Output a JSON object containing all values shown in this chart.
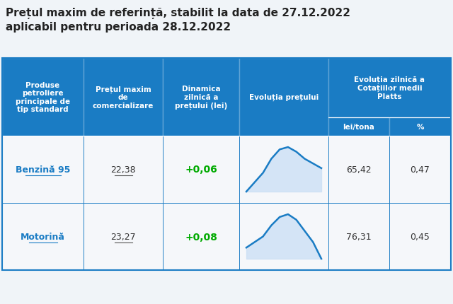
{
  "title_line1": "Prețul maxim de referință, stabilit la data de 27.12.2022",
  "title_line2": "aplicabil pentru perioada 28.12.2022",
  "header_bg": "#1a7cc4",
  "header_text_color": "#ffffff",
  "row_bg": "#f5f7fa",
  "border_color": "#1a7cc4",
  "rows": [
    {
      "name": "Benzină 95",
      "price": "22,38",
      "dynamic": "+0,06",
      "lei_tona": "65,42",
      "percent": "0,47",
      "chart_data": [
        10,
        8,
        6,
        3,
        1,
        0.5,
        1.5,
        3,
        4,
        5
      ]
    },
    {
      "name": "Motorină",
      "price": "23,27",
      "dynamic": "+0,08",
      "lei_tona": "76,31",
      "percent": "0,45",
      "chart_data": [
        6,
        5,
        4,
        2,
        0.5,
        0,
        1,
        3,
        5,
        8
      ]
    }
  ],
  "dynamic_color": "#00aa00",
  "name_color": "#1a7cc4",
  "chart_line_color": "#1a7cc4",
  "chart_fill_color": "#cce0f5",
  "fig_bg": "#f0f4f8"
}
